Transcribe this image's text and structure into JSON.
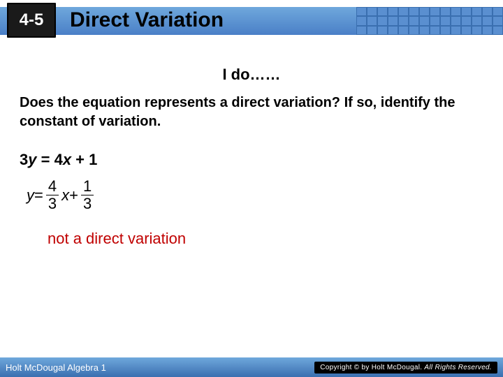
{
  "header": {
    "lesson_number": "4-5",
    "title": "Direct Variation"
  },
  "content": {
    "ido": "I do……",
    "question": "Does the equation represents a direct variation? If so, identify the constant of variation.",
    "equation1_prefix": "3",
    "equation1_y": "y",
    "equation1_eq": " = 4",
    "equation1_x": "x",
    "equation1_suffix": " + 1",
    "eq2_y": "y",
    "eq2_eq": " = ",
    "eq2_frac1_num": "4",
    "eq2_frac1_den": "3",
    "eq2_x": "x",
    "eq2_plus": " + ",
    "eq2_frac2_num": "1",
    "eq2_frac2_den": "3",
    "answer": "not a direct variation",
    "answer_color": "#c00000"
  },
  "footer": {
    "left": "Holt McDougal Algebra 1",
    "right_prefix": "Copyright © by Holt McDougal. ",
    "right_suffix": "All Rights Reserved."
  },
  "colors": {
    "header_gradient_top": "#6fa8dc",
    "header_gradient_bottom": "#4a7fc7",
    "badge_bg": "#1a1a1a",
    "footer_gradient_top": "#6fa8dc",
    "footer_gradient_bottom": "#3a6fb0"
  }
}
